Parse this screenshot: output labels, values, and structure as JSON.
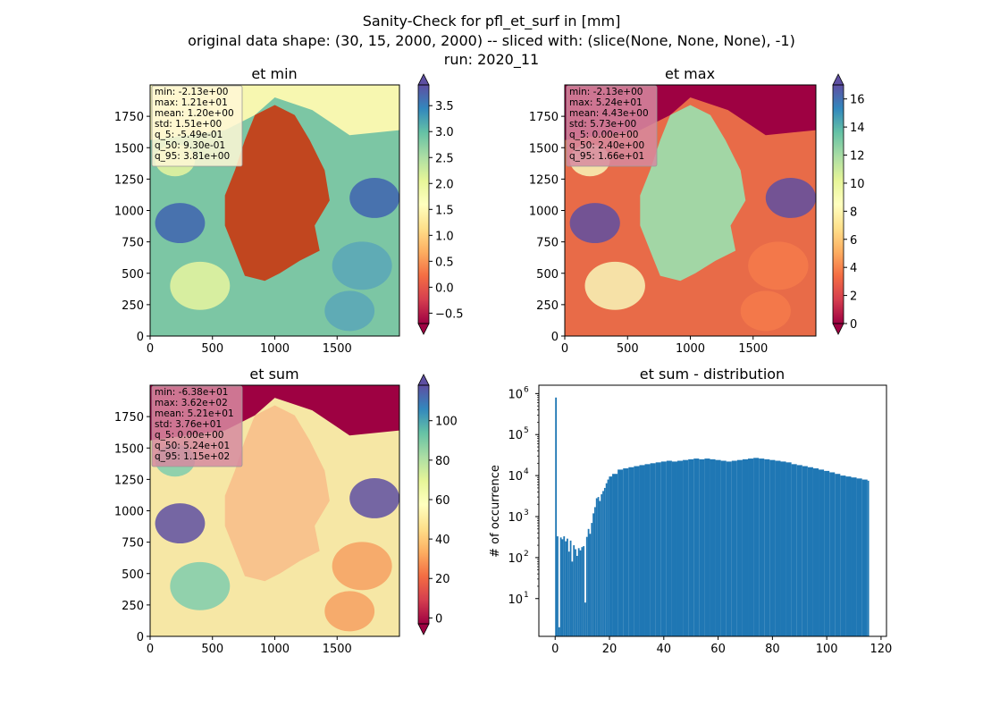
{
  "figure": {
    "title_lines": [
      "Sanity-Check for pfl_et_surf in [mm]",
      "original data shape: (30, 15, 2000, 2000) -- sliced with: (slice(None, None, None), -1)",
      "run: 2020_11"
    ]
  },
  "colormap": [
    "#9e0142",
    "#d53e4f",
    "#f46d43",
    "#fdae61",
    "#fee08b",
    "#ffffbf",
    "#e6f598",
    "#abdda4",
    "#66c2a5",
    "#3288bd",
    "#5e4fa2"
  ],
  "chart_data": [
    {
      "type": "heatmap",
      "title": "et min",
      "xlabel": "",
      "ylabel": "",
      "xlim": [
        0,
        2000
      ],
      "ylim": [
        0,
        2000
      ],
      "x_ticks": [
        0,
        500,
        1000,
        1500
      ],
      "y_ticks": [
        0,
        250,
        500,
        750,
        1000,
        1250,
        1500,
        1750
      ],
      "colorbar": {
        "vmin": -0.7,
        "vmax": 3.9,
        "ticks": [
          -0.5,
          0.0,
          0.5,
          1.0,
          1.5,
          2.0,
          2.5,
          3.0,
          3.5
        ],
        "tick_labels": [
          "−0.5",
          "0.0",
          "0.5",
          "1.0",
          "1.5",
          "2.0",
          "2.5",
          "3.0",
          "3.5"
        ],
        "extend": "both"
      },
      "stats": [
        "min: -2.13e+00",
        "max: 1.21e+01",
        "mean: 1.20e+00",
        "std: 1.51e+00",
        "q_5: -5.49e-01",
        "q_50: 9.30e-01",
        "q_95: 3.81e+00"
      ],
      "stats_box_color": "#fff7d6"
    },
    {
      "type": "heatmap",
      "title": "et max",
      "xlabel": "",
      "ylabel": "",
      "xlim": [
        0,
        2000
      ],
      "ylim": [
        0,
        2000
      ],
      "x_ticks": [
        0,
        500,
        1000,
        1500
      ],
      "y_ticks": [
        0,
        250,
        500,
        750,
        1000,
        1250,
        1500,
        1750
      ],
      "colorbar": {
        "vmin": 0,
        "vmax": 17,
        "ticks": [
          0,
          2,
          4,
          6,
          8,
          10,
          12,
          14,
          16
        ],
        "tick_labels": [
          "0",
          "2",
          "4",
          "6",
          "8",
          "10",
          "12",
          "14",
          "16"
        ],
        "extend": "both"
      },
      "stats": [
        "min: -2.13e+00",
        "max: 5.24e+01",
        "mean: 4.43e+00",
        "std: 5.73e+00",
        "q_5: 0.00e+00",
        "q_50: 2.40e+00",
        "q_95: 1.66e+01"
      ],
      "stats_box_color": "#d68aa0"
    },
    {
      "type": "heatmap",
      "title": "et sum",
      "xlabel": "",
      "ylabel": "",
      "xlim": [
        0,
        2000
      ],
      "ylim": [
        0,
        2000
      ],
      "x_ticks": [
        0,
        500,
        1000,
        1500
      ],
      "y_ticks": [
        0,
        250,
        500,
        750,
        1000,
        1250,
        1500,
        1750
      ],
      "colorbar": {
        "vmin": -3,
        "vmax": 118,
        "ticks": [
          0,
          20,
          40,
          60,
          80,
          100
        ],
        "tick_labels": [
          "0",
          "20",
          "40",
          "60",
          "80",
          "100"
        ],
        "extend": "both"
      },
      "stats": [
        "min: -6.38e+01",
        "max: 3.62e+02",
        "mean: 5.21e+01",
        "std: 3.76e+01",
        "q_5: 0.00e+00",
        "q_50: 5.24e+01",
        "q_95: 1.15e+02"
      ],
      "stats_box_color": "#d68aa0"
    },
    {
      "type": "bar",
      "title": "et sum - distribution",
      "xlabel": "",
      "ylabel": "# of occurrence",
      "yscale": "log",
      "xlim": [
        -6,
        122
      ],
      "ylim": [
        1.2,
        1600000
      ],
      "x_ticks": [
        0,
        20,
        40,
        60,
        80,
        100,
        120
      ],
      "y_ticks": [
        10,
        100,
        1000,
        10000,
        100000,
        1000000
      ],
      "y_tick_exponents": [
        "1",
        "2",
        "3",
        "4",
        "5",
        "6"
      ],
      "bar_color": "#1f77b4",
      "bin_width": 0.6,
      "bins": [
        [
          0,
          800000
        ],
        [
          0.6,
          330
        ],
        [
          1.2,
          2
        ],
        [
          1.8,
          310
        ],
        [
          2.4,
          280
        ],
        [
          3.0,
          330
        ],
        [
          3.6,
          250
        ],
        [
          4.2,
          290
        ],
        [
          4.8,
          140
        ],
        [
          5.4,
          260
        ],
        [
          6.0,
          80
        ],
        [
          6.6,
          200
        ],
        [
          7.2,
          160
        ],
        [
          7.8,
          110
        ],
        [
          8.4,
          170
        ],
        [
          9.0,
          150
        ],
        [
          9.6,
          180
        ],
        [
          10.2,
          190
        ],
        [
          10.8,
          8
        ],
        [
          11.4,
          320
        ],
        [
          12.0,
          500
        ],
        [
          12.6,
          380
        ],
        [
          13.2,
          700
        ],
        [
          13.8,
          1200
        ],
        [
          14.4,
          1700
        ],
        [
          15.0,
          2800
        ],
        [
          15.6,
          3000
        ],
        [
          16.2,
          2400
        ],
        [
          16.8,
          3500
        ],
        [
          17.4,
          4200
        ],
        [
          18.0,
          5000
        ],
        [
          18.6,
          6500
        ],
        [
          19.2,
          8000
        ],
        [
          19.8,
          9500
        ],
        [
          21,
          11000
        ],
        [
          23,
          14000
        ],
        [
          25,
          15000
        ],
        [
          27,
          16000
        ],
        [
          29,
          17000
        ],
        [
          31,
          18000
        ],
        [
          33,
          19000
        ],
        [
          35,
          20000
        ],
        [
          37,
          21000
        ],
        [
          39,
          22000
        ],
        [
          41,
          23000
        ],
        [
          43,
          22000
        ],
        [
          45,
          23000
        ],
        [
          47,
          24000
        ],
        [
          49,
          25000
        ],
        [
          51,
          26000
        ],
        [
          53,
          25000
        ],
        [
          55,
          26000
        ],
        [
          57,
          25000
        ],
        [
          59,
          24000
        ],
        [
          61,
          23000
        ],
        [
          63,
          22000
        ],
        [
          65,
          23000
        ],
        [
          67,
          24000
        ],
        [
          69,
          25000
        ],
        [
          71,
          26000
        ],
        [
          73,
          27000
        ],
        [
          75,
          26000
        ],
        [
          77,
          25000
        ],
        [
          79,
          24000
        ],
        [
          81,
          23000
        ],
        [
          83,
          22000
        ],
        [
          85,
          21000
        ],
        [
          87,
          19000
        ],
        [
          89,
          18000
        ],
        [
          91,
          17000
        ],
        [
          93,
          16000
        ],
        [
          95,
          15000
        ],
        [
          97,
          14000
        ],
        [
          99,
          13000
        ],
        [
          101,
          12000
        ],
        [
          103,
          11000
        ],
        [
          105,
          10000
        ],
        [
          107,
          9500
        ],
        [
          109,
          9000
        ],
        [
          111,
          8500
        ],
        [
          113,
          8000
        ],
        [
          115,
          7500
        ]
      ]
    }
  ]
}
